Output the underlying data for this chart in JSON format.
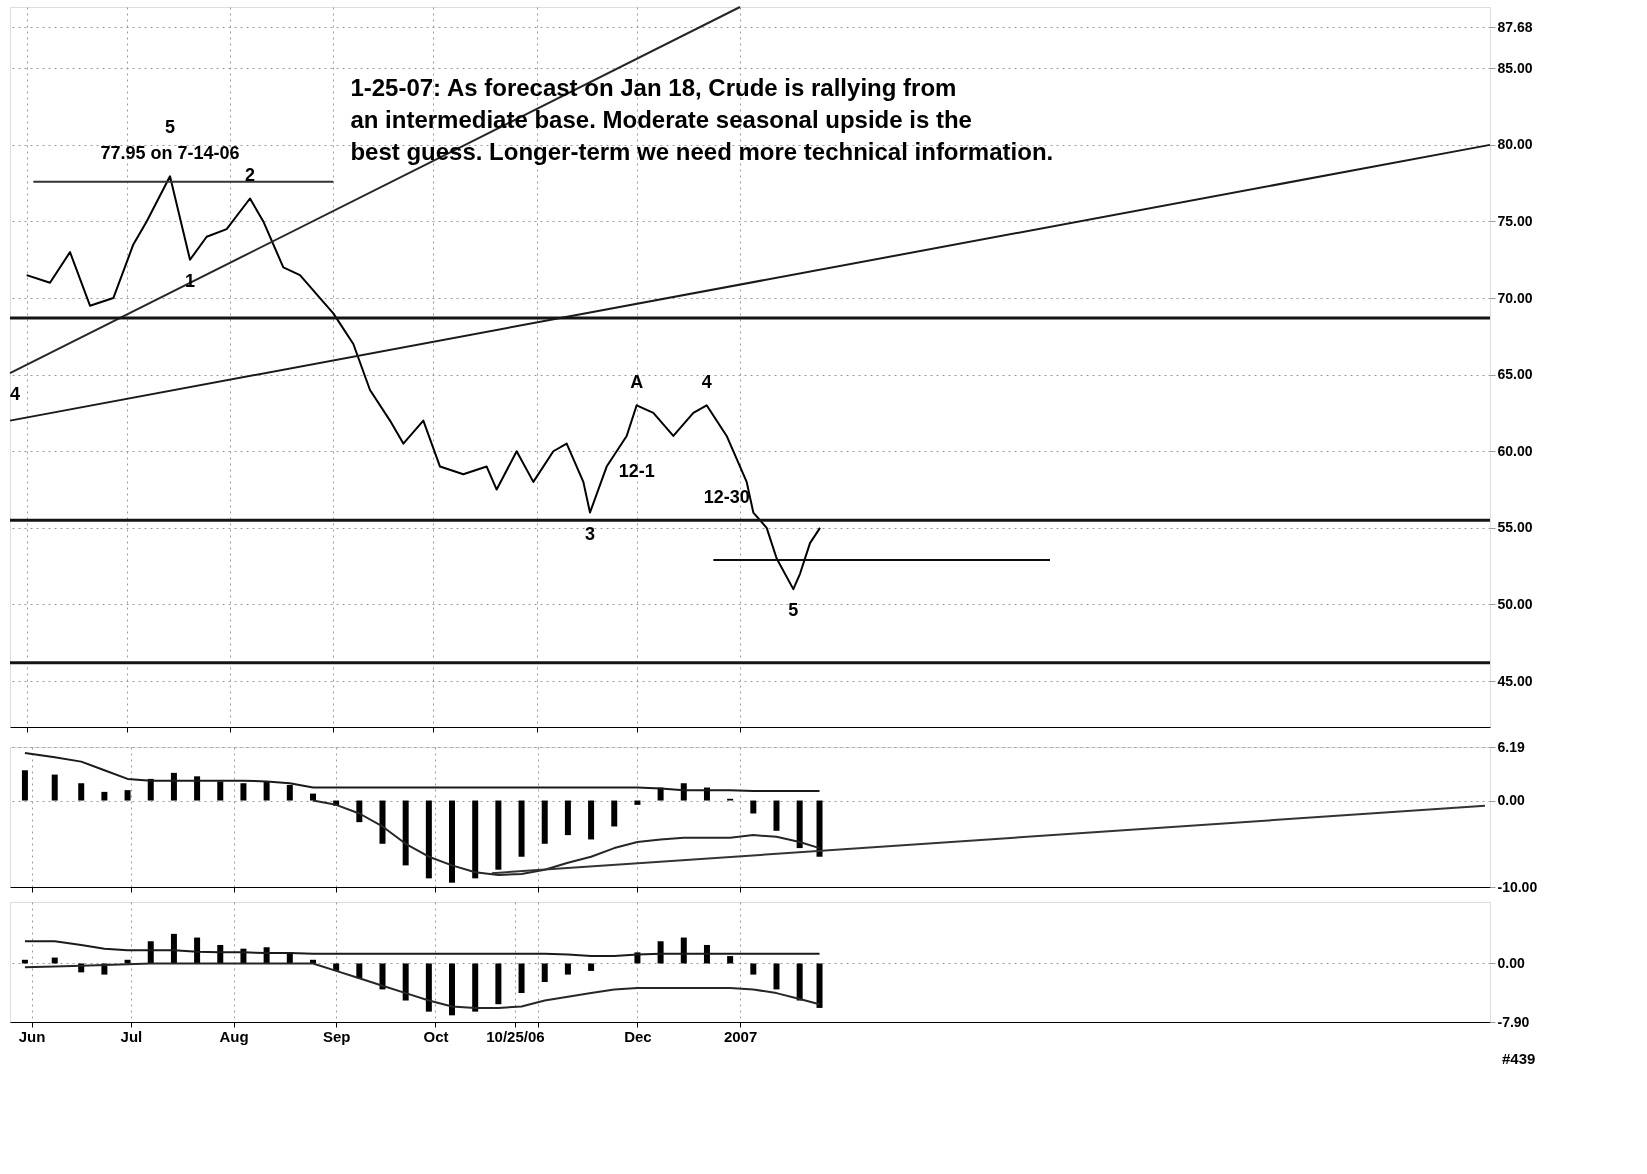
{
  "chart_data": [
    {
      "type": "line",
      "xlim": [
        "2006-05-27",
        "2007-08-14"
      ],
      "ylim": [
        42,
        89
      ],
      "yticks": [
        {
          "value": 87.68,
          "label": "87.68"
        },
        {
          "value": 85,
          "label": "85.00"
        },
        {
          "value": 80,
          "label": "80.00"
        },
        {
          "value": 75,
          "label": "75.00"
        },
        {
          "value": 70,
          "label": "70.00"
        },
        {
          "value": 65,
          "label": "65.00"
        },
        {
          "value": 60,
          "label": "60.00"
        },
        {
          "value": 55,
          "label": "55.00"
        },
        {
          "value": 50,
          "label": "50.00"
        },
        {
          "value": 45,
          "label": "45.00"
        }
      ],
      "xticks": [
        {
          "value": "2006-06-01",
          "label": null
        },
        {
          "value": "2006-07-01",
          "label": null
        },
        {
          "value": "2006-08-01",
          "label": null
        },
        {
          "value": "2006-09-01",
          "label": null
        },
        {
          "value": "2006-10-01",
          "label": null
        },
        {
          "value": "2006-11-01",
          "label": null
        },
        {
          "value": "2006-12-01",
          "label": null
        },
        {
          "value": "2007-01-01",
          "label": null
        }
      ],
      "tick_labels": "y",
      "grid": true,
      "x": [
        "2006-06-01",
        "2006-06-08",
        "2006-06-14",
        "2006-06-20",
        "2006-06-27",
        "2006-07-03",
        "2006-07-07",
        "2006-07-14",
        "2006-07-20",
        "2006-07-25",
        "2006-07-31",
        "2006-08-07",
        "2006-08-11",
        "2006-08-17",
        "2006-08-22",
        "2006-08-28",
        "2006-09-01",
        "2006-09-07",
        "2006-09-12",
        "2006-09-18",
        "2006-09-22",
        "2006-09-28",
        "2006-10-03",
        "2006-10-10",
        "2006-10-17",
        "2006-10-20",
        "2006-10-26",
        "2006-10-31",
        "2006-11-06",
        "2006-11-10",
        "2006-11-15",
        "2006-11-17",
        "2006-11-22",
        "2006-11-28",
        "2006-12-01",
        "2006-12-06",
        "2006-12-12",
        "2006-12-18",
        "2006-12-22",
        "2006-12-28",
        "2007-01-03",
        "2007-01-05",
        "2007-01-09",
        "2007-01-12",
        "2007-01-17",
        "2007-01-19",
        "2007-01-22",
        "2007-01-25"
      ],
      "series": [
        {
          "color": "#000000",
          "values": [
            71.5,
            71,
            73,
            69.5,
            70,
            73.5,
            75,
            77.95,
            72.5,
            74,
            74.5,
            76.5,
            75,
            72,
            71.5,
            70,
            69,
            67,
            64,
            62,
            60.5,
            62,
            59,
            58.5,
            59,
            57.5,
            60,
            58,
            60,
            60.5,
            58,
            56,
            59,
            61,
            63,
            62.5,
            61,
            62.5,
            63,
            61,
            58,
            56,
            55,
            53,
            51,
            52,
            54,
            55
          ]
        },
        {
          "type": "line",
          "color": "#1a1a1a",
          "x": [
            "2006-05-27",
            "2007-08-14"
          ],
          "values": [
            62.0,
            80.0
          ]
        },
        {
          "type": "line",
          "color": "#262626",
          "x": [
            "2006-05-27",
            "2007-01-01"
          ],
          "values": [
            65.1,
            89.0
          ]
        },
        {
          "type": "line",
          "color": "#333333",
          "x": [
            "2006-06-03",
            "2006-09-01"
          ],
          "values": [
            77.6,
            77.6
          ]
        },
        {
          "type": "line",
          "color": "#0d0d0d",
          "x": [
            "2006-12-24",
            "2007-04-04"
          ],
          "values": [
            52.9,
            52.9
          ]
        }
      ],
      "ref_lines": [
        {
          "axis": "y",
          "value": 68.7,
          "color": "#141414"
        },
        {
          "axis": "y",
          "value": 55.5,
          "color": "#141414"
        },
        {
          "axis": "y",
          "value": 46.2,
          "color": "#141414"
        }
      ],
      "annotations": [
        "1-25-07: As forecast on Jan 18, Crude is rallying from\nan intermediate base. Moderate seasonal upside is the\nbest guess. Longer-term we need more technical information.",
        {
          "text": "77.95 on 7-14-06",
          "x": "2006-07-14",
          "y": 77.95
        },
        {
          "text": "5",
          "x": "2006-07-14",
          "y": 77.95
        },
        {
          "text": "2",
          "x": "2006-08-07",
          "y": 76.5
        },
        {
          "text": "1",
          "x": "2006-07-20",
          "y": 72.5
        },
        {
          "text": "4",
          "x": "2006-05-27",
          "y": 65.1
        },
        {
          "text": "A",
          "x": "2006-12-01",
          "y": 63
        },
        {
          "text": "4",
          "x": "2006-12-22",
          "y": 63
        },
        {
          "text": "3",
          "x": "2006-11-17",
          "y": 56
        },
        {
          "text": "12-1",
          "x": "2006-12-01",
          "y": 55.5
        },
        {
          "text": "12-30",
          "x": "2006-12-28",
          "y": 55.5
        },
        {
          "text": "5",
          "x": "2007-01-17",
          "y": 51
        }
      ]
    },
    {
      "type": "bar",
      "xlim": [
        "2006-05-27",
        "2007-08-14"
      ],
      "ylim": [
        -10,
        6.19
      ],
      "yticks": [
        {
          "value": 6.19,
          "label": "6.19"
        },
        {
          "value": 0,
          "label": "0.00"
        },
        {
          "value": -10,
          "label": "-10.00"
        }
      ],
      "xticks": [
        {
          "value": "2006-06-01",
          "label": null
        },
        {
          "value": "2006-07-01",
          "label": null
        },
        {
          "value": "2006-08-01",
          "label": null
        },
        {
          "value": "2006-09-01",
          "label": null
        },
        {
          "value": "2006-10-01",
          "label": null
        },
        {
          "value": "2006-11-01",
          "label": null
        },
        {
          "value": "2006-12-01",
          "label": null
        },
        {
          "value": "2007-01-01",
          "label": null
        }
      ],
      "tick_labels": "y",
      "grid": true,
      "x": [
        "2006-05-30",
        "2006-06-08",
        "2006-06-16",
        "2006-06-23",
        "2006-06-30",
        "2006-07-07",
        "2006-07-14",
        "2006-07-21",
        "2006-07-28",
        "2006-08-04",
        "2006-08-11",
        "2006-08-18",
        "2006-08-25",
        "2006-09-01",
        "2006-09-08",
        "2006-09-15",
        "2006-09-22",
        "2006-09-29",
        "2006-10-06",
        "2006-10-13",
        "2006-10-20",
        "2006-10-27",
        "2006-11-03",
        "2006-11-10",
        "2006-11-17",
        "2006-11-24",
        "2006-12-01",
        "2006-12-08",
        "2006-12-15",
        "2006-12-22",
        "2006-12-29",
        "2007-01-05",
        "2007-01-12",
        "2007-01-19",
        "2007-01-25"
      ],
      "series": [
        {
          "color": "#000000",
          "values": [
            3.5,
            3,
            2,
            1,
            1.2,
            2.5,
            3.2,
            2.8,
            2.2,
            2,
            2.2,
            1.8,
            0.8,
            -0.6,
            -2.5,
            -5,
            -7.5,
            -9,
            -9.5,
            -9,
            -8,
            -6.5,
            -5,
            -4,
            -4.5,
            -3,
            -0.5,
            1.5,
            2,
            1.5,
            0.2,
            -1.5,
            -3.5,
            -5.5,
            -6.5
          ]
        },
        {
          "type": "line",
          "color": "#1a1a1a",
          "values": [
            5.5,
            5,
            4.5,
            3.5,
            2.5,
            2.3,
            2.3,
            2.3,
            2.3,
            2.3,
            2.2,
            2,
            1.5,
            1.5,
            1.5,
            1.5,
            1.5,
            1.5,
            1.5,
            1.5,
            1.5,
            1.5,
            1.5,
            1.5,
            1.5,
            1.5,
            1.5,
            1.4,
            1.2,
            1.2,
            1.2,
            1.1,
            1.1,
            1.1,
            1.1
          ]
        },
        {
          "type": "line",
          "color": "#262626",
          "values": [
            null,
            null,
            null,
            null,
            null,
            null,
            null,
            null,
            null,
            null,
            null,
            null,
            0,
            -0.5,
            -1.5,
            -3,
            -5,
            -6.5,
            -7.5,
            -8.3,
            -8.6,
            -8.5,
            -8,
            -7.2,
            -6.5,
            -5.5,
            -4.8,
            -4.5,
            -4.3,
            -4.3,
            -4.3,
            -4,
            -4.2,
            -4.8,
            -5.5
          ]
        },
        {
          "type": "line",
          "color": "#333333",
          "x": [
            "2006-10-18",
            "2007-08-14"
          ],
          "values": [
            -8.4,
            -0.6
          ]
        }
      ]
    },
    {
      "type": "bar",
      "xlim": [
        "2006-05-27",
        "2007-08-14"
      ],
      "ylim": [
        -7.9,
        8.3
      ],
      "yticks": [
        {
          "value": 0,
          "label": "0.00"
        },
        {
          "value": -7.9,
          "label": "-7.90"
        }
      ],
      "xticks": [
        {
          "value": "2006-06-01",
          "label": "Jun"
        },
        {
          "value": "2006-07-01",
          "label": "Jul"
        },
        {
          "value": "2006-08-01",
          "label": "Aug"
        },
        {
          "value": "2006-09-01",
          "label": "Sep"
        },
        {
          "value": "2006-10-01",
          "label": "Oct"
        },
        {
          "value": "2006-10-25",
          "label": "10/25/06"
        },
        {
          "value": "2006-11-01",
          "label": null
        },
        {
          "value": "2006-12-01",
          "label": "Dec"
        },
        {
          "value": "2007-01-01",
          "label": "2007"
        }
      ],
      "grid": true,
      "x": [
        "2006-05-30",
        "2006-06-08",
        "2006-06-16",
        "2006-06-23",
        "2006-06-30",
        "2006-07-07",
        "2006-07-14",
        "2006-07-21",
        "2006-07-28",
        "2006-08-04",
        "2006-08-11",
        "2006-08-18",
        "2006-08-25",
        "2006-09-01",
        "2006-09-08",
        "2006-09-15",
        "2006-09-22",
        "2006-09-29",
        "2006-10-06",
        "2006-10-13",
        "2006-10-20",
        "2006-10-27",
        "2006-11-03",
        "2006-11-10",
        "2006-11-17",
        "2006-11-24",
        "2006-12-01",
        "2006-12-08",
        "2006-12-15",
        "2006-12-22",
        "2006-12-29",
        "2007-01-05",
        "2007-01-12",
        "2007-01-19",
        "2007-01-25"
      ],
      "series": [
        {
          "color": "#000000",
          "values": [
            0.5,
            0.8,
            -1.2,
            -1.5,
            0.5,
            3,
            4,
            3.5,
            2.5,
            2,
            2.2,
            1.5,
            0.5,
            -1,
            -2,
            -3.5,
            -5,
            -6.5,
            -7,
            -6.5,
            -5.5,
            -4,
            -2.5,
            -1.5,
            -1,
            0,
            1.5,
            3,
            3.5,
            2.5,
            1,
            -1.5,
            -3.5,
            -5,
            -6
          ]
        },
        {
          "type": "line",
          "color": "#1a1a1a",
          "values": [
            3,
            3,
            2.5,
            2,
            1.8,
            1.8,
            1.8,
            1.6,
            1.5,
            1.5,
            1.4,
            1.4,
            1.3,
            1.3,
            1.3,
            1.3,
            1.3,
            1.3,
            1.3,
            1.3,
            1.3,
            1.3,
            1.3,
            1.2,
            1,
            1,
            1.2,
            1.3,
            1.3,
            1.3,
            1.3,
            1.3,
            1.3,
            1.3,
            1.3
          ]
        },
        {
          "type": "line",
          "color": "#262626",
          "values": [
            -0.5,
            -0.4,
            -0.3,
            -0.2,
            -0.1,
            0,
            0,
            0,
            0,
            0,
            0,
            0,
            0,
            -1,
            -2,
            -3,
            -4,
            -5,
            -5.8,
            -6,
            -6,
            -5.8,
            -5,
            -4.5,
            -4,
            -3.5,
            -3.3,
            -3.3,
            -3.3,
            -3.3,
            -3.3,
            -3.5,
            -4,
            -4.8,
            -5.5
          ]
        }
      ],
      "annotations": [
        "#439"
      ]
    }
  ]
}
